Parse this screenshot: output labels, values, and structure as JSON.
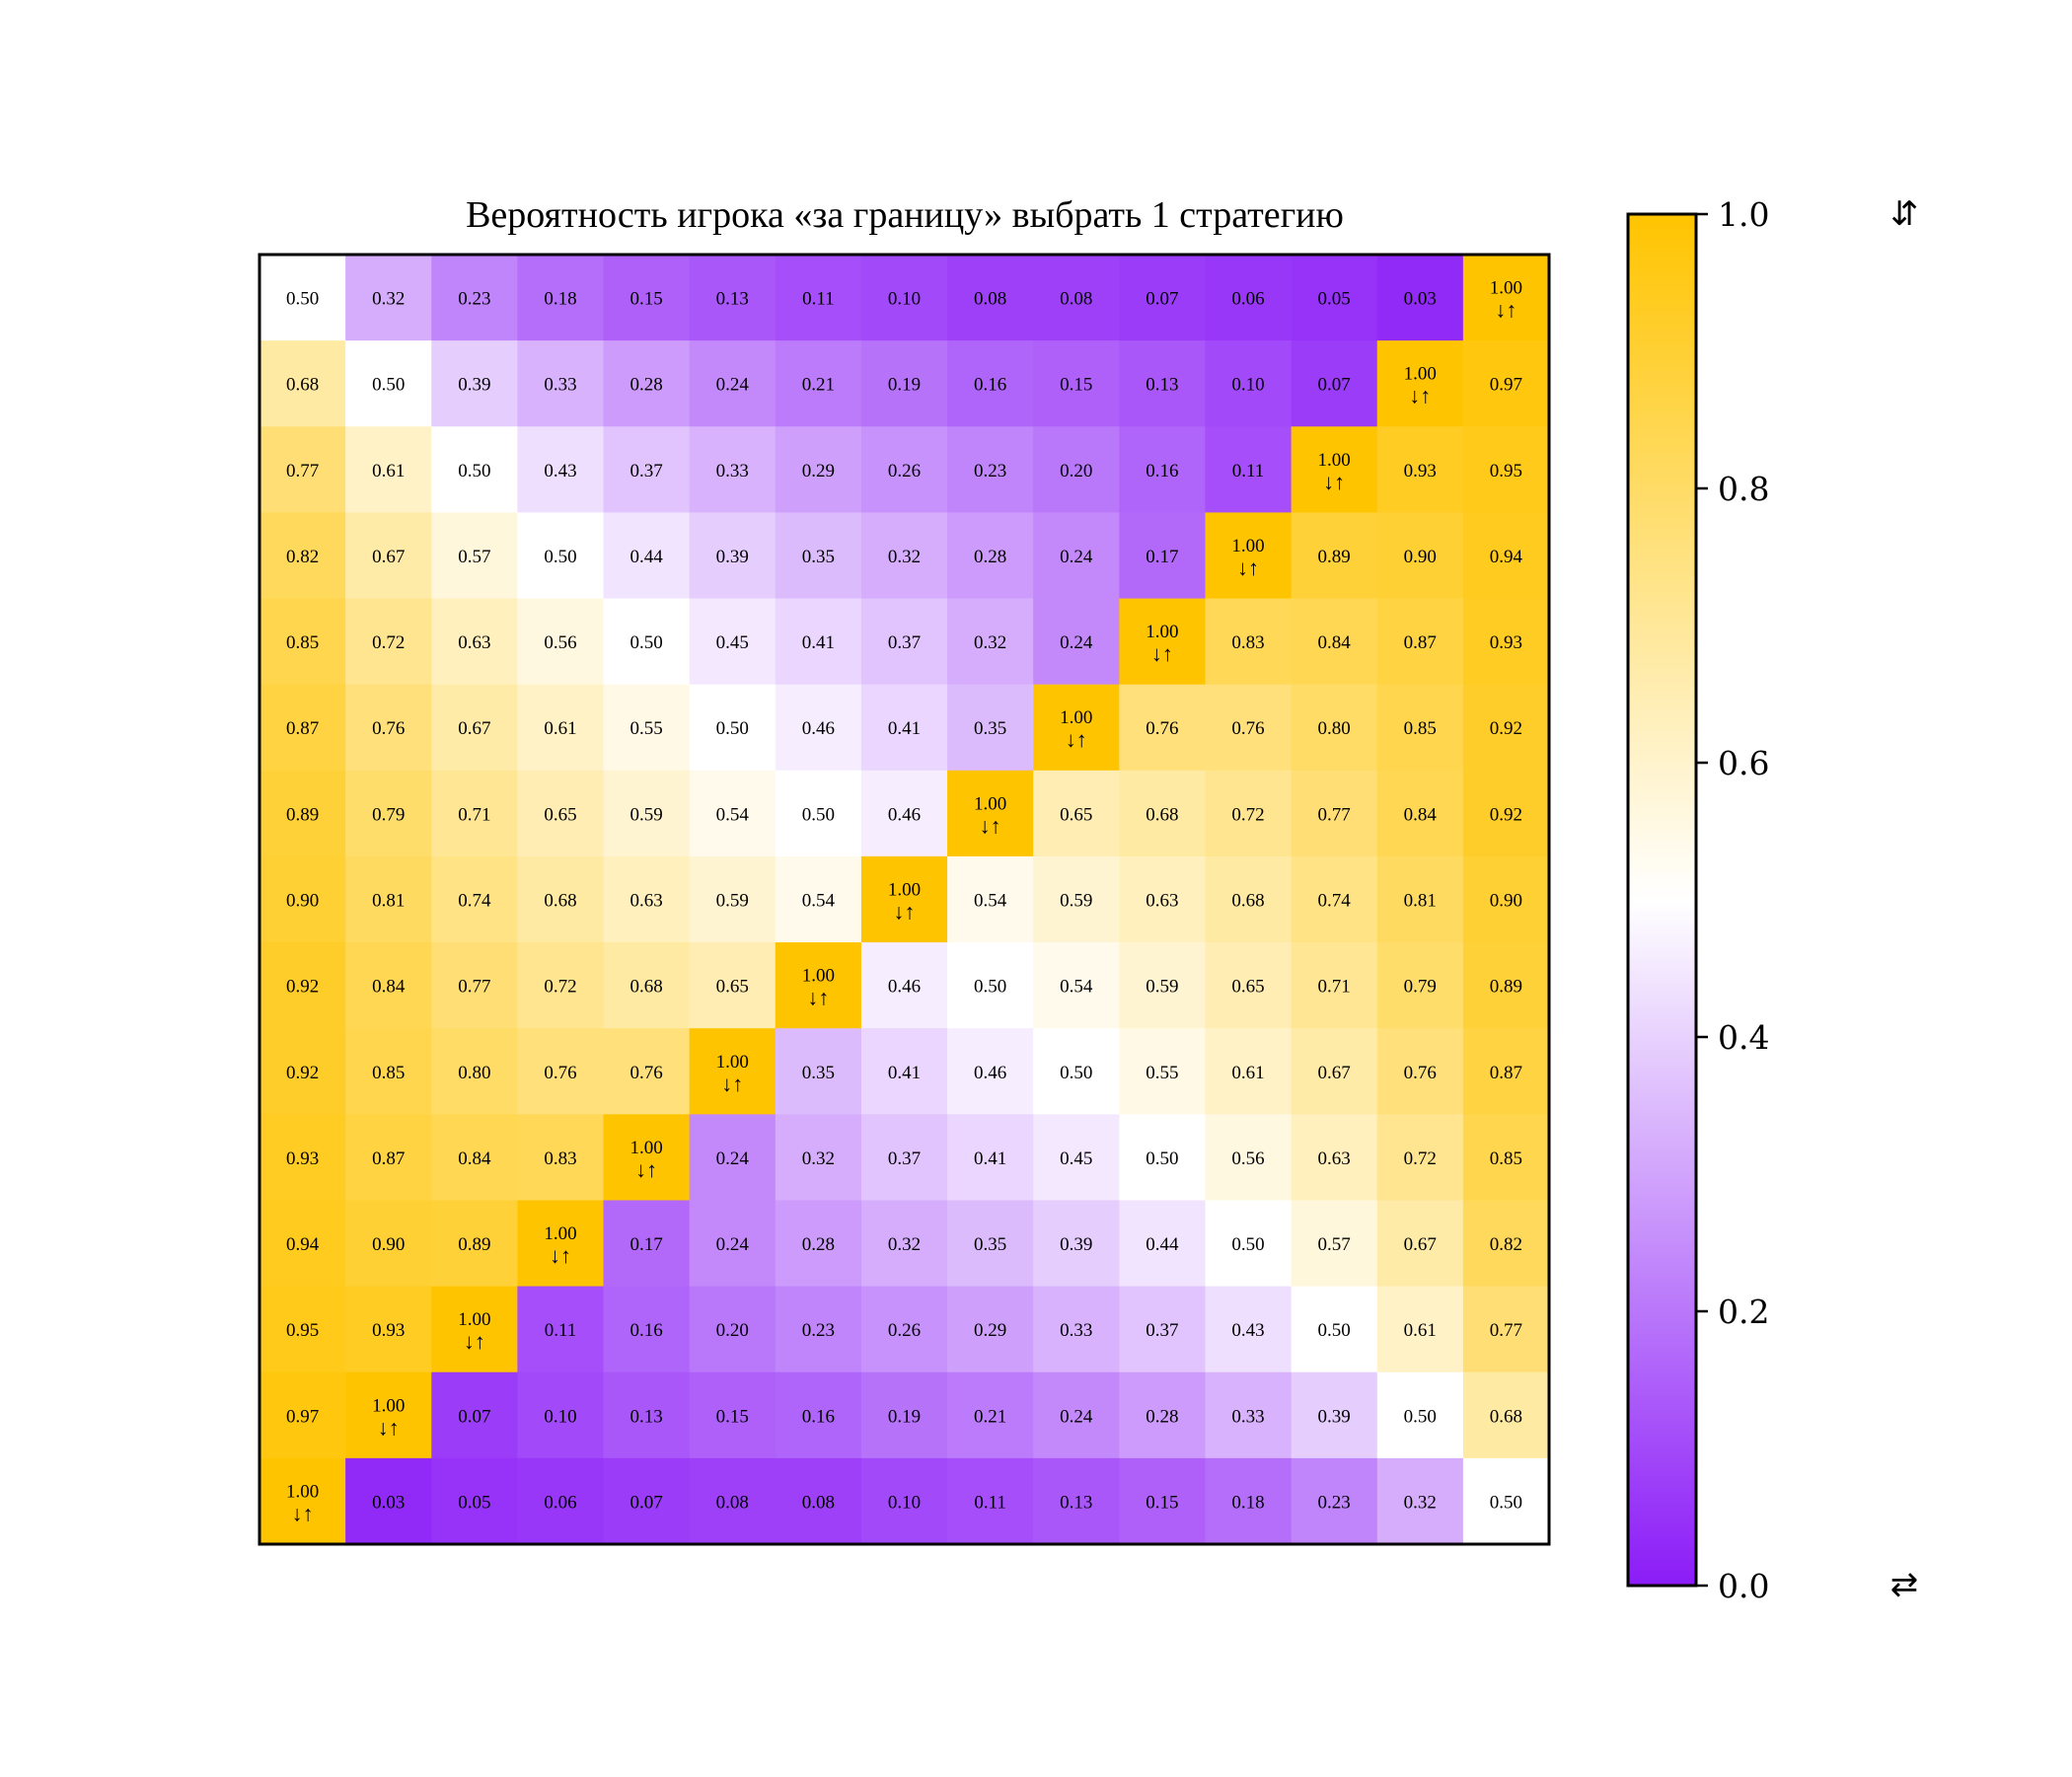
{
  "chart_data": {
    "type": "heatmap",
    "title": "Вероятность игрока «за границу» выбрать 1 стратегию",
    "rows": 15,
    "cols": 15,
    "values": [
      [
        0.5,
        0.32,
        0.23,
        0.18,
        0.15,
        0.13,
        0.11,
        0.1,
        0.08,
        0.08,
        0.07,
        0.06,
        0.05,
        0.03,
        1.0
      ],
      [
        0.68,
        0.5,
        0.39,
        0.33,
        0.28,
        0.24,
        0.21,
        0.19,
        0.16,
        0.15,
        0.13,
        0.1,
        0.07,
        1.0,
        0.97
      ],
      [
        0.77,
        0.61,
        0.5,
        0.43,
        0.37,
        0.33,
        0.29,
        0.26,
        0.23,
        0.2,
        0.16,
        0.11,
        1.0,
        0.93,
        0.95
      ],
      [
        0.82,
        0.67,
        0.57,
        0.5,
        0.44,
        0.39,
        0.35,
        0.32,
        0.28,
        0.24,
        0.17,
        1.0,
        0.89,
        0.9,
        0.94
      ],
      [
        0.85,
        0.72,
        0.63,
        0.56,
        0.5,
        0.45,
        0.41,
        0.37,
        0.32,
        0.24,
        1.0,
        0.83,
        0.84,
        0.87,
        0.93
      ],
      [
        0.87,
        0.76,
        0.67,
        0.61,
        0.55,
        0.5,
        0.46,
        0.41,
        0.35,
        1.0,
        0.76,
        0.76,
        0.8,
        0.85,
        0.92
      ],
      [
        0.89,
        0.79,
        0.71,
        0.65,
        0.59,
        0.54,
        0.5,
        0.46,
        1.0,
        0.65,
        0.68,
        0.72,
        0.77,
        0.84,
        0.92
      ],
      [
        0.9,
        0.81,
        0.74,
        0.68,
        0.63,
        0.59,
        0.54,
        1.0,
        0.54,
        0.59,
        0.63,
        0.68,
        0.74,
        0.81,
        0.9
      ],
      [
        0.92,
        0.84,
        0.77,
        0.72,
        0.68,
        0.65,
        1.0,
        0.46,
        0.5,
        0.54,
        0.59,
        0.65,
        0.71,
        0.79,
        0.89
      ],
      [
        0.92,
        0.85,
        0.8,
        0.76,
        0.76,
        1.0,
        0.35,
        0.41,
        0.46,
        0.5,
        0.55,
        0.61,
        0.67,
        0.76,
        0.87
      ],
      [
        0.93,
        0.87,
        0.84,
        0.83,
        1.0,
        0.24,
        0.32,
        0.37,
        0.41,
        0.45,
        0.5,
        0.56,
        0.63,
        0.72,
        0.85
      ],
      [
        0.94,
        0.9,
        0.89,
        1.0,
        0.17,
        0.24,
        0.28,
        0.32,
        0.35,
        0.39,
        0.44,
        0.5,
        0.57,
        0.67,
        0.82
      ],
      [
        0.95,
        0.93,
        1.0,
        0.11,
        0.16,
        0.2,
        0.23,
        0.26,
        0.29,
        0.33,
        0.37,
        0.43,
        0.5,
        0.61,
        0.77
      ],
      [
        0.97,
        1.0,
        0.07,
        0.1,
        0.13,
        0.15,
        0.16,
        0.19,
        0.21,
        0.24,
        0.28,
        0.33,
        0.39,
        0.5,
        0.68
      ],
      [
        1.0,
        0.03,
        0.05,
        0.06,
        0.07,
        0.08,
        0.08,
        0.1,
        0.11,
        0.13,
        0.15,
        0.18,
        0.23,
        0.32,
        0.5
      ]
    ],
    "cell_marker": "↓↑",
    "colorbar": {
      "vmin": 0.0,
      "vmax": 1.0,
      "ticks": [
        "0.0",
        "0.2",
        "0.4",
        "0.6",
        "0.8",
        "1.0"
      ],
      "top_symbol": "⇵",
      "bottom_symbol": "⇄",
      "colors": {
        "low": "#8b1cf7",
        "mid": "#ffffff",
        "high": "#ffc400"
      }
    },
    "grid": false
  }
}
